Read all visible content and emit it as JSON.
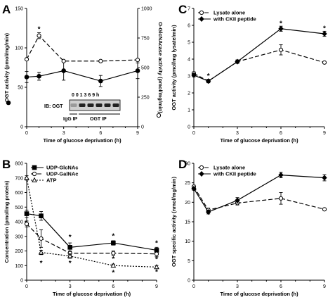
{
  "chart_data": [
    {
      "panel": "A",
      "type": "line",
      "xlabel": "Time of glucose deprivation (h)",
      "x_ticks": [
        0,
        3,
        6,
        9
      ],
      "xlim": [
        0,
        9
      ],
      "ylabel_left": "OGT activity (pmol/mg/min)",
      "ylim_left": [
        0,
        150
      ],
      "y_ticks_left": [
        0,
        50,
        100,
        150
      ],
      "ylabel_right": "O-GlcNAcase activity (pmol/mg/min)",
      "ylim_right": [
        0,
        1000
      ],
      "y_ticks_right": [
        0,
        250,
        500,
        750,
        1000
      ],
      "series": [
        {
          "axis": "left",
          "style": "solid",
          "marker": "filled-circle",
          "x": [
            0,
            1,
            3,
            6,
            9
          ],
          "values": [
            63,
            64,
            71,
            58,
            71
          ],
          "err": [
            7,
            5,
            12,
            7,
            10
          ]
        },
        {
          "axis": "right",
          "style": "dashed",
          "marker": "open-circle",
          "x": [
            0,
            1,
            3,
            6,
            9
          ],
          "values": [
            570,
            770,
            555,
            555,
            565
          ],
          "err": [
            0,
            25,
            8,
            8,
            8
          ]
        }
      ],
      "annotations": [
        {
          "x": 1,
          "y_right": 830,
          "text": "*"
        }
      ],
      "inset": {
        "lanes_label": "0   0   1   3   6   9   h",
        "ib_label": "IB: OGT",
        "igg_label": "IgG IP",
        "ogt_label": "OGT IP"
      }
    },
    {
      "panel": "B",
      "type": "line",
      "xlabel": "Time of glucose deprivation (h)",
      "x_ticks": [
        0,
        3,
        6,
        9
      ],
      "xlim": [
        0,
        9
      ],
      "ylabel": "Concentration (pmol/mg protein)",
      "ylim": [
        0,
        800
      ],
      "y_ticks": [
        0,
        100,
        200,
        300,
        400,
        500,
        600,
        700,
        800
      ],
      "series": [
        {
          "name": "UDP-GlcNAc",
          "style": "solid",
          "marker": "filled-square",
          "x": [
            0,
            1,
            3,
            6,
            9
          ],
          "values": [
            455,
            440,
            225,
            255,
            205
          ],
          "err": [
            25,
            30,
            30,
            15,
            20
          ]
        },
        {
          "name": "UDP-GalNAc",
          "style": "dashed",
          "marker": "open-circle",
          "x": [
            0,
            1,
            3,
            6,
            9
          ],
          "values": [
            385,
            285,
            185,
            185,
            180
          ],
          "err": [
            20,
            60,
            15,
            15,
            20
          ]
        },
        {
          "name": "ATP",
          "style": "dotted",
          "marker": "open-triangle",
          "x": [
            0,
            1,
            3,
            6,
            9
          ],
          "values": [
            700,
            190,
            165,
            100,
            90
          ],
          "err": [
            15,
            15,
            15,
            10,
            10
          ]
        }
      ],
      "annotations": [
        {
          "x": 1,
          "y": 120,
          "text": "*"
        },
        {
          "x": 3,
          "y": 300,
          "text": "*"
        },
        {
          "x": 3,
          "y": 120,
          "text": "*"
        },
        {
          "x": 6,
          "y": 305,
          "text": "*"
        },
        {
          "x": 6,
          "y": 150,
          "text": "*"
        },
        {
          "x": 6,
          "y": 55,
          "text": "*"
        },
        {
          "x": 9,
          "y": 258,
          "text": "*"
        },
        {
          "x": 9,
          "y": 148,
          "text": "*"
        },
        {
          "x": 9,
          "y": 60,
          "text": "*"
        }
      ]
    },
    {
      "panel": "C",
      "type": "line",
      "xlabel": "Time of glucose deprivation (h)",
      "x_ticks": [
        0,
        3,
        6,
        9
      ],
      "xlim": [
        0,
        9
      ],
      "ylabel": "OGT activity (pmol/mg lysate/min)",
      "ylim": [
        0,
        7
      ],
      "y_ticks": [
        0,
        1,
        2,
        3,
        4,
        5,
        6,
        7
      ],
      "series": [
        {
          "name": "Lysate alone",
          "style": "dashed",
          "marker": "open-circle",
          "x": [
            0,
            1,
            3,
            6,
            9
          ],
          "values": [
            3.15,
            2.7,
            3.85,
            4.55,
            3.8
          ],
          "err": [
            0.1,
            0.1,
            0.1,
            0.3,
            0.05
          ]
        },
        {
          "name": "with CKII peptide",
          "style": "solid",
          "marker": "filled-diamond",
          "x": [
            0,
            1,
            3,
            6,
            9
          ],
          "values": [
            3.05,
            2.7,
            3.85,
            5.8,
            5.5
          ],
          "err": [
            0.1,
            0.1,
            0.1,
            0.15,
            0.15
          ]
        }
      ],
      "annotations": [
        {
          "x": 1,
          "y": 3.05,
          "text": "*"
        },
        {
          "x": 6,
          "y": 6.15,
          "text": "*"
        },
        {
          "x": 9,
          "y": 5.85,
          "text": "*"
        }
      ]
    },
    {
      "panel": "D",
      "type": "line",
      "xlabel": "Time of glucose deprivation (h)",
      "x_ticks": [
        0,
        3,
        6,
        9
      ],
      "xlim": [
        0,
        9
      ],
      "ylabel": "OGT specific activity (nmol/mg/min)",
      "ylim": [
        0,
        30
      ],
      "y_ticks": [
        0,
        5,
        10,
        15,
        20,
        25,
        30
      ],
      "series": [
        {
          "name": "Lysate alone",
          "style": "dashed",
          "marker": "open-circle",
          "x": [
            0,
            1,
            3,
            6,
            9
          ],
          "values": [
            24,
            18,
            19.8,
            21,
            18.2
          ],
          "err": [
            0.4,
            0.5,
            0.5,
            1.5,
            0.3
          ]
        },
        {
          "name": "with CKII peptide",
          "style": "solid",
          "marker": "filled-diamond",
          "x": [
            0,
            1,
            3,
            6,
            9
          ],
          "values": [
            23.5,
            17.5,
            20.5,
            27,
            26.3
          ],
          "err": [
            0.4,
            0.5,
            0.7,
            0.7,
            0.8
          ]
        }
      ],
      "annotations": []
    }
  ]
}
